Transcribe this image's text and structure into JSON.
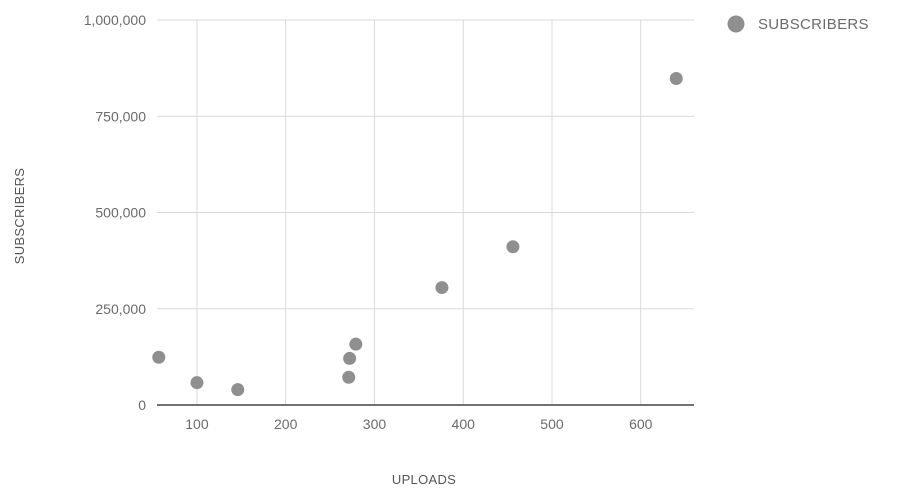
{
  "chart_data": {
    "type": "scatter",
    "title": "",
    "xlabel": "UPLOADS",
    "ylabel": "SUBSCRIBERS",
    "xlim": [
      55,
      660
    ],
    "ylim": [
      0,
      1000000
    ],
    "grid": true,
    "legend_position": "top-right",
    "x_ticks": [
      100,
      200,
      300,
      400,
      500,
      600
    ],
    "x_tick_labels": [
      "100",
      "200",
      "300",
      "400",
      "500",
      "600"
    ],
    "y_ticks": [
      0,
      250000,
      500000,
      750000,
      1000000
    ],
    "y_tick_labels": [
      "0",
      "250,000",
      "500,000",
      "750,000",
      "1,000,000"
    ],
    "series": [
      {
        "name": "SUBSCRIBERS",
        "color": "#8f8f8f",
        "x": [
          57,
          100,
          146,
          271,
          272,
          279,
          376,
          456,
          640
        ],
        "y": [
          124000,
          58000,
          40000,
          72000,
          121000,
          158000,
          305000,
          411000,
          848000
        ]
      }
    ]
  }
}
